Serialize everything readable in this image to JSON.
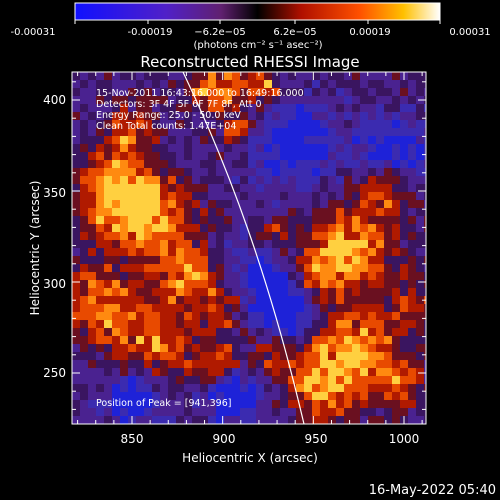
{
  "colorbar": {
    "ticks": [
      "-0.00031",
      "-0.00019",
      "−6.2e−05",
      "6.2e−05",
      "0.00019",
      "0.00031"
    ],
    "unit_label": "(photons cm⁻² s⁻¹ asec⁻²)"
  },
  "plot": {
    "title": "Reconstructed RHESSI Image",
    "xlabel": "Heliocentric X (arcsec)",
    "ylabel": "Heliocentric Y (arcsec)",
    "xticks": [
      "850",
      "900",
      "950",
      "1000"
    ],
    "yticks": [
      "400",
      "350",
      "300",
      "250"
    ],
    "info_lines": [
      "15-Nov-2011 16:43:16.000 to 16:49:16.000",
      "Detectors: 3F 4F 5F 6F 7F 8F, Att 0",
      "Energy Range: 25.0 - 50.0 keV",
      "Clean     Total counts: 1.47E+04"
    ],
    "peak_label": "Position of Peak = [941,396]"
  },
  "footer": {
    "timestamp": "16-May-2022 05:40"
  }
}
